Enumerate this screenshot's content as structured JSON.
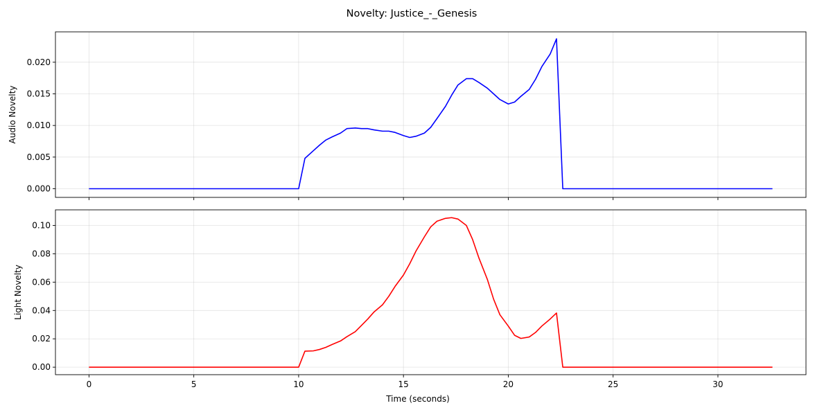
{
  "figure": {
    "title": "Novelty: Justice_-_Genesis",
    "xlabel": "Time (seconds)"
  },
  "chart_data": [
    {
      "type": "line",
      "ylabel": "Audio Novelty",
      "xlim": [
        -1.6,
        34.2
      ],
      "ylim": [
        -0.00137,
        0.0248
      ],
      "xticks": [
        0,
        5,
        10,
        15,
        20,
        25,
        30
      ],
      "yticks": [
        0.0,
        0.005,
        0.01,
        0.015,
        0.02
      ],
      "ytick_labels": [
        "0.000",
        "0.005",
        "0.010",
        "0.015",
        "0.020"
      ],
      "grid": true,
      "series": [
        {
          "color": "#0000ff",
          "x": [
            0,
            10.0,
            10.3,
            10.7,
            11.0,
            11.3,
            11.6,
            12.0,
            12.3,
            12.7,
            13.0,
            13.3,
            13.6,
            14.0,
            14.3,
            14.6,
            15.0,
            15.3,
            15.6,
            16.0,
            16.3,
            16.6,
            17.0,
            17.3,
            17.6,
            18.0,
            18.3,
            18.6,
            19.0,
            19.3,
            19.6,
            20.0,
            20.3,
            20.6,
            21.0,
            21.3,
            21.6,
            22.0,
            22.3,
            22.6,
            32.6
          ],
          "y": [
            0,
            0,
            0.0048,
            0.006,
            0.0069,
            0.0077,
            0.0082,
            0.0088,
            0.0095,
            0.0096,
            0.0095,
            0.0095,
            0.0093,
            0.0091,
            0.0091,
            0.0089,
            0.0084,
            0.0081,
            0.0083,
            0.0088,
            0.0097,
            0.0111,
            0.013,
            0.0148,
            0.0164,
            0.0174,
            0.0174,
            0.0168,
            0.0159,
            0.015,
            0.0141,
            0.0134,
            0.0137,
            0.0146,
            0.0157,
            0.0173,
            0.0193,
            0.0213,
            0.0237,
            0,
            0
          ]
        }
      ]
    },
    {
      "type": "line",
      "ylabel": "Light Novelty",
      "xlim": [
        -1.6,
        34.2
      ],
      "ylim": [
        -0.0053,
        0.111
      ],
      "xticks": [
        0,
        5,
        10,
        15,
        20,
        25,
        30
      ],
      "xtick_labels": [
        "0",
        "5",
        "10",
        "15",
        "20",
        "25",
        "30"
      ],
      "yticks": [
        0.0,
        0.02,
        0.04,
        0.06,
        0.08,
        0.1
      ],
      "ytick_labels": [
        "0.00",
        "0.02",
        "0.04",
        "0.06",
        "0.08",
        "0.10"
      ],
      "grid": true,
      "series": [
        {
          "color": "#ff0000",
          "x": [
            0,
            10.0,
            10.3,
            10.7,
            11.0,
            11.3,
            11.6,
            12.0,
            12.3,
            12.7,
            13.0,
            13.3,
            13.6,
            14.0,
            14.3,
            14.6,
            15.0,
            15.3,
            15.6,
            16.0,
            16.3,
            16.6,
            17.0,
            17.3,
            17.6,
            18.0,
            18.3,
            18.6,
            19.0,
            19.3,
            19.6,
            20.0,
            20.3,
            20.6,
            21.0,
            21.3,
            21.6,
            22.0,
            22.3,
            22.6,
            32.6
          ],
          "y": [
            0,
            0,
            0.0113,
            0.0115,
            0.0125,
            0.014,
            0.016,
            0.0185,
            0.0215,
            0.025,
            0.0295,
            0.034,
            0.039,
            0.044,
            0.05,
            0.057,
            0.065,
            0.073,
            0.082,
            0.092,
            0.099,
            0.103,
            0.105,
            0.1055,
            0.1045,
            0.1,
            0.09,
            0.077,
            0.062,
            0.048,
            0.037,
            0.029,
            0.0225,
            0.0203,
            0.0213,
            0.0245,
            0.029,
            0.034,
            0.0382,
            0,
            0
          ]
        }
      ]
    }
  ]
}
